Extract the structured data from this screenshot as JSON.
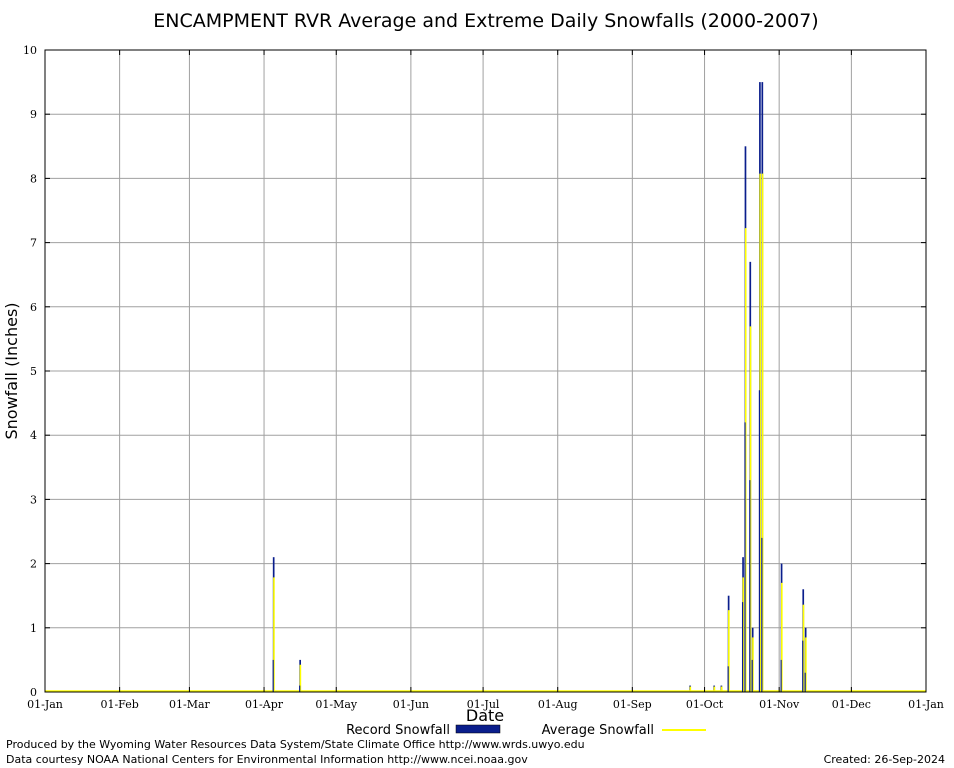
{
  "colors": {
    "record": "#0a1e8c",
    "average": "#ffff00",
    "grid": "#a0a0a0",
    "axis": "#000000"
  },
  "chart_data": {
    "type": "bar",
    "title": "ENCAMPMENT RVR Average and Extreme Daily Snowfalls (2000-2007)",
    "xlabel": "Date",
    "ylabel": "Snowfall (Inches)",
    "ylim": [
      0,
      10
    ],
    "yticks": [
      0,
      1,
      2,
      3,
      4,
      5,
      6,
      7,
      8,
      9,
      10
    ],
    "xlim_days": [
      0,
      366
    ],
    "xticks": [
      {
        "label": "01-Jan",
        "day": 0
      },
      {
        "label": "01-Feb",
        "day": 31
      },
      {
        "label": "01-Mar",
        "day": 60
      },
      {
        "label": "01-Apr",
        "day": 91
      },
      {
        "label": "01-May",
        "day": 121
      },
      {
        "label": "01-Jun",
        "day": 152
      },
      {
        "label": "01-Jul",
        "day": 182
      },
      {
        "label": "01-Aug",
        "day": 213
      },
      {
        "label": "01-Sep",
        "day": 244
      },
      {
        "label": "01-Oct",
        "day": 274
      },
      {
        "label": "01-Nov",
        "day": 305
      },
      {
        "label": "01-Dec",
        "day": 335
      },
      {
        "label": "01-Jan",
        "day": 366
      }
    ],
    "grid": true,
    "legend_position": "bottom",
    "series": [
      {
        "name": "Record Snowfall",
        "style": "bar",
        "points": [
          {
            "date": "05-Apr",
            "day": 95,
            "value": 2.1
          },
          {
            "date": "16-Apr",
            "day": 106,
            "value": 0.5
          },
          {
            "date": "25-Sep",
            "day": 268,
            "value": 0.1
          },
          {
            "date": "05-Oct",
            "day": 278,
            "value": 0.1
          },
          {
            "date": "08-Oct",
            "day": 281,
            "value": 0.1
          },
          {
            "date": "11-Oct",
            "day": 284,
            "value": 1.5
          },
          {
            "date": "17-Oct",
            "day": 290,
            "value": 2.1
          },
          {
            "date": "18-Oct",
            "day": 291,
            "value": 8.5
          },
          {
            "date": "20-Oct",
            "day": 293,
            "value": 6.7
          },
          {
            "date": "21-Oct",
            "day": 294,
            "value": 1.0
          },
          {
            "date": "24-Oct",
            "day": 297,
            "value": 9.5
          },
          {
            "date": "25-Oct",
            "day": 298,
            "value": 9.5
          },
          {
            "date": "02-Nov",
            "day": 306,
            "value": 2.0
          },
          {
            "date": "11-Nov",
            "day": 315,
            "value": 1.6
          },
          {
            "date": "12-Nov",
            "day": 316,
            "value": 1.0
          }
        ]
      },
      {
        "name": "Average Snowfall",
        "style": "line",
        "points": [
          {
            "date": "05-Apr",
            "day": 95,
            "value": 0.5
          },
          {
            "date": "16-Apr",
            "day": 106,
            "value": 0.1
          },
          {
            "date": "25-Sep",
            "day": 268,
            "value": 0.0
          },
          {
            "date": "11-Oct",
            "day": 284,
            "value": 0.4
          },
          {
            "date": "17-Oct",
            "day": 290,
            "value": 1.4
          },
          {
            "date": "18-Oct",
            "day": 291,
            "value": 4.2
          },
          {
            "date": "20-Oct",
            "day": 293,
            "value": 3.3
          },
          {
            "date": "21-Oct",
            "day": 294,
            "value": 0.5
          },
          {
            "date": "24-Oct",
            "day": 297,
            "value": 4.7
          },
          {
            "date": "25-Oct",
            "day": 298,
            "value": 2.4
          },
          {
            "date": "02-Nov",
            "day": 306,
            "value": 0.5
          },
          {
            "date": "11-Nov",
            "day": 315,
            "value": 0.8
          },
          {
            "date": "12-Nov",
            "day": 316,
            "value": 0.3
          }
        ]
      }
    ]
  },
  "footer": {
    "credit_line1": "Produced by the Wyoming Water Resources Data System/State Climate Office http://www.wrds.uwyo.edu",
    "credit_line2": "Data courtesy NOAA National Centers for Environmental Information http://www.ncei.noaa.gov",
    "created": "Created:  26-Sep-2024"
  }
}
